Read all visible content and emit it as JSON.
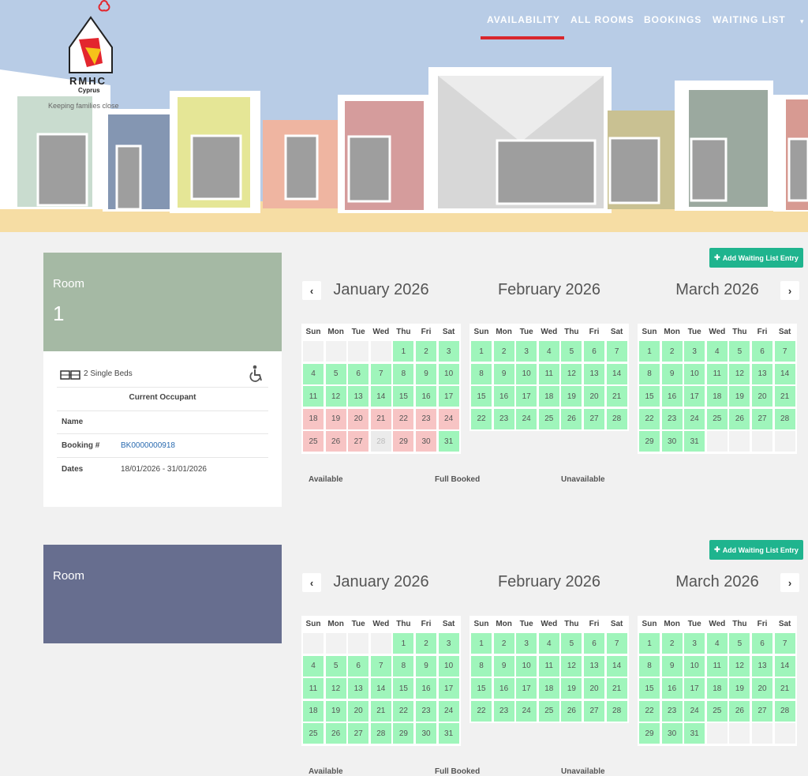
{
  "logo": {
    "brand": "RMHC",
    "location": "Cyprus",
    "tagline": "Keeping families close"
  },
  "nav": [
    "AVAILABILITY",
    "ALL ROOMS",
    "BOOKINGS",
    "WAITING LIST"
  ],
  "add_button": "Add Waiting List Entry",
  "weekdays": [
    "Sun",
    "Mon",
    "Tue",
    "Wed",
    "Thu",
    "Fri",
    "Sat"
  ],
  "legend": [
    "Available",
    "Full Booked",
    "Unavailable"
  ],
  "status_colors": {
    "available": "#9ff5bb",
    "booked": "#f7c4c4",
    "unavailable": "#ebebeb",
    "empty": "#f2f2f2"
  },
  "months": [
    {
      "title": "January 2026",
      "weeks": [
        [
          null,
          null,
          null,
          null,
          1,
          2,
          3
        ],
        [
          4,
          5,
          6,
          7,
          8,
          9,
          10
        ],
        [
          11,
          12,
          13,
          14,
          15,
          16,
          17
        ],
        [
          18,
          19,
          20,
          21,
          22,
          23,
          24
        ],
        [
          25,
          26,
          27,
          28,
          29,
          30,
          31
        ]
      ]
    },
    {
      "title": "February 2026",
      "weeks": [
        [
          1,
          2,
          3,
          4,
          5,
          6,
          7
        ],
        [
          8,
          9,
          10,
          11,
          12,
          13,
          14
        ],
        [
          15,
          16,
          17,
          18,
          19,
          20,
          21
        ],
        [
          22,
          23,
          24,
          25,
          26,
          27,
          28
        ]
      ]
    },
    {
      "title": "March 2026",
      "weeks": [
        [
          1,
          2,
          3,
          4,
          5,
          6,
          7
        ],
        [
          8,
          9,
          10,
          11,
          12,
          13,
          14
        ],
        [
          15,
          16,
          17,
          18,
          19,
          20,
          21
        ],
        [
          22,
          23,
          24,
          25,
          26,
          27,
          28
        ],
        [
          29,
          30,
          31,
          null,
          null,
          null,
          null
        ]
      ]
    }
  ],
  "rooms": [
    {
      "label": "Room",
      "number": "1",
      "color": "#a5b9a4",
      "beds": "2 Single Beds",
      "occupant_title": "Current Occupant",
      "fields": [
        {
          "label": "Name"
        },
        {
          "label": "Booking #",
          "value": "BK0000000918"
        },
        {
          "label": "Dates",
          "value": "18/01/2026 - 31/01/2026"
        }
      ],
      "bookings": [
        {
          "month": "January 2026",
          "booked": [
            18,
            19,
            20,
            21,
            22,
            23,
            24,
            25,
            26,
            27,
            29,
            30
          ],
          "unavailable": [
            28
          ]
        }
      ]
    },
    {
      "label": "Room",
      "color": "#676e8f"
    }
  ]
}
